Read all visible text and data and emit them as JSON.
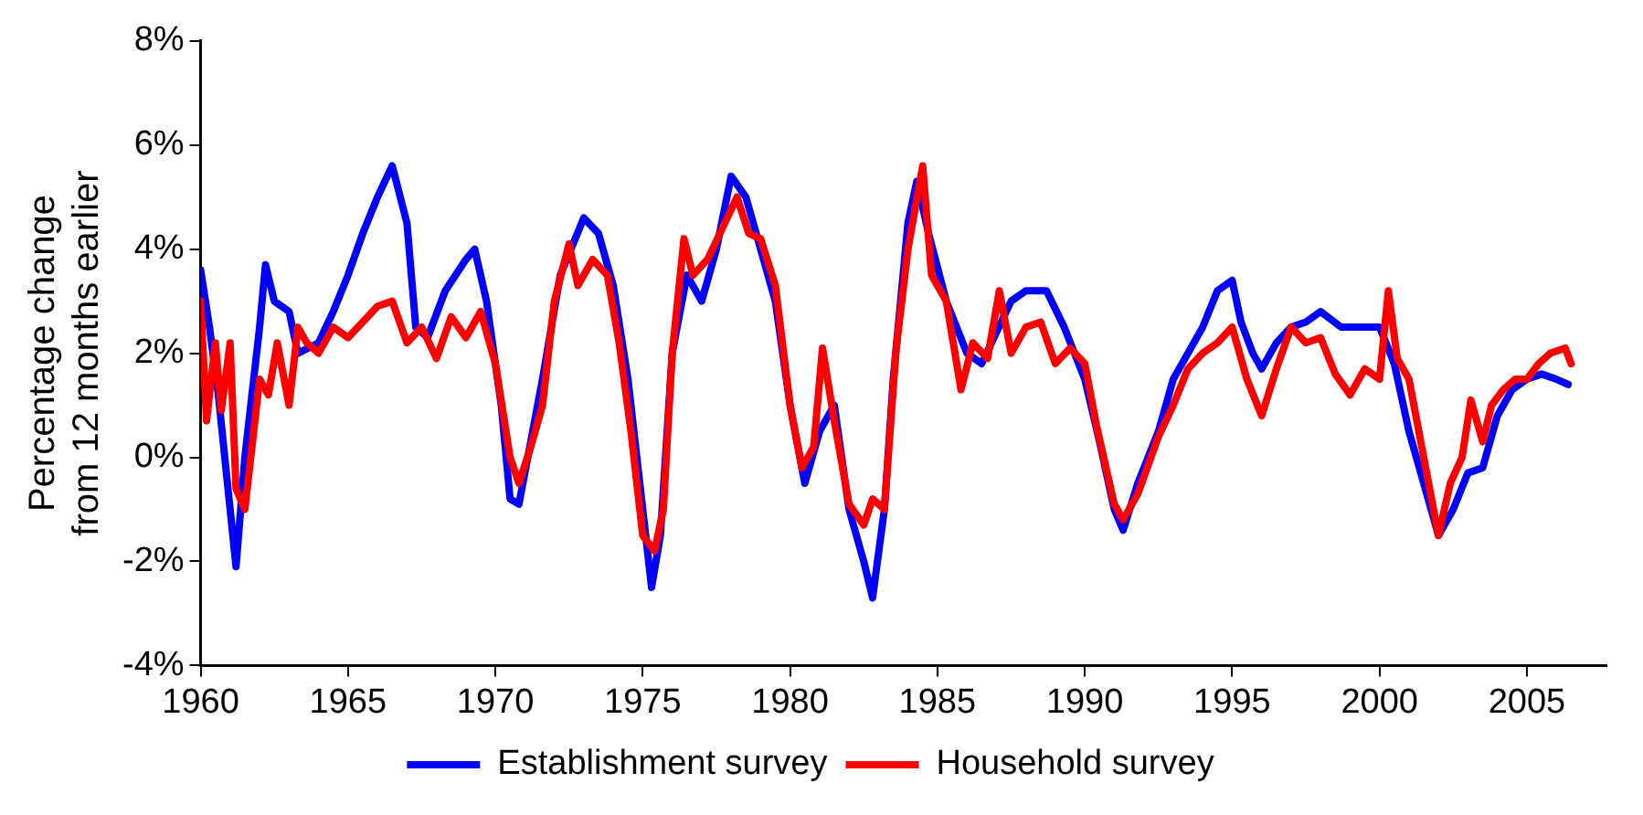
{
  "chart_data": {
    "type": "line",
    "ylabel": "Percentage change\nfrom 12 months earlier",
    "xlim": [
      1960,
      2007.7
    ],
    "xticks": [
      1960,
      1965,
      1970,
      1975,
      1980,
      1985,
      1990,
      1995,
      2000,
      2005
    ],
    "ylim": [
      -4,
      8
    ],
    "yticks": [
      {
        "value": -4,
        "label": "-4%"
      },
      {
        "value": -2,
        "label": "-2%"
      },
      {
        "value": 0,
        "label": "0%"
      },
      {
        "value": 2,
        "label": "2%"
      },
      {
        "value": 4,
        "label": "4%"
      },
      {
        "value": 6,
        "label": "6%"
      },
      {
        "value": 8,
        "label": "8%"
      }
    ],
    "grid": false,
    "legend": "bottom",
    "marker": "none",
    "line_style": "solid",
    "series": [
      {
        "name": "Establishment survey",
        "color": "#0000ff",
        "x": [
          1960,
          1960.3,
          1960.6,
          1961,
          1961.2,
          1961.5,
          1962,
          1962.2,
          1962.5,
          1963,
          1963.3,
          1964,
          1964.5,
          1965,
          1965.5,
          1966,
          1966.5,
          1967,
          1967.3,
          1967.7,
          1968.3,
          1969,
          1969.3,
          1969.7,
          1970.2,
          1970.5,
          1970.8,
          1971.2,
          1971.6,
          1972.2,
          1973,
          1973.5,
          1974,
          1974.5,
          1975,
          1975.3,
          1975.6,
          1976,
          1976.5,
          1977,
          1977.5,
          1978,
          1978.5,
          1979,
          1979.5,
          1980,
          1980.5,
          1981,
          1981.5,
          1982,
          1982.5,
          1982.8,
          1983.2,
          1983.5,
          1984,
          1984.3,
          1984.7,
          1985.3,
          1986,
          1986.5,
          1987,
          1987.5,
          1988,
          1988.7,
          1989.3,
          1990,
          1990.5,
          1991,
          1991.3,
          1991.8,
          1992.5,
          1993,
          1993.5,
          1994,
          1994.5,
          1995,
          1995.3,
          1995.7,
          1996,
          1996.5,
          1997,
          1997.5,
          1998,
          1998.7,
          1999.3,
          2000,
          2000.5,
          2001,
          2001.5,
          2002,
          2002.5,
          2003,
          2003.5,
          2004,
          2004.5,
          2005,
          2005.5,
          2006,
          2006.4
        ],
        "values": [
          3.6,
          2.5,
          1.2,
          -1.0,
          -2.1,
          0,
          2.5,
          3.7,
          3.0,
          2.8,
          2.0,
          2.2,
          2.8,
          3.5,
          4.3,
          5.0,
          5.6,
          4.5,
          2.5,
          2.3,
          3.2,
          3.8,
          4.0,
          3.0,
          1.0,
          -0.8,
          -0.9,
          0.3,
          1.5,
          3.5,
          4.6,
          4.3,
          3.3,
          1.5,
          -1.0,
          -2.5,
          -1.5,
          2.0,
          3.5,
          3.0,
          4.0,
          5.4,
          5.0,
          4.0,
          3.0,
          1.0,
          -0.5,
          0.5,
          1.0,
          -1.0,
          -2.0,
          -2.7,
          -1.0,
          1.5,
          4.5,
          5.3,
          4.3,
          3.0,
          2.0,
          1.8,
          2.4,
          3.0,
          3.2,
          3.2,
          2.5,
          1.5,
          0.3,
          -1.0,
          -1.4,
          -0.5,
          0.5,
          1.5,
          2.0,
          2.5,
          3.2,
          3.4,
          2.6,
          2.0,
          1.7,
          2.2,
          2.5,
          2.6,
          2.8,
          2.5,
          2.5,
          2.5,
          1.8,
          0.5,
          -0.5,
          -1.5,
          -1.0,
          -0.3,
          -0.2,
          0.8,
          1.3,
          1.5,
          1.6,
          1.5,
          1.4
        ]
      },
      {
        "name": "Household survey",
        "color": "#ff0000",
        "x": [
          1960,
          1960.2,
          1960.5,
          1960.7,
          1961,
          1961.2,
          1961.5,
          1961.8,
          1962,
          1962.3,
          1962.6,
          1963,
          1963.3,
          1963.6,
          1964,
          1964.5,
          1965,
          1965.5,
          1966,
          1966.5,
          1967,
          1967.5,
          1968,
          1968.5,
          1969,
          1969.5,
          1970,
          1970.5,
          1970.8,
          1971.2,
          1971.6,
          1972,
          1972.5,
          1972.8,
          1973.3,
          1973.8,
          1974.2,
          1974.6,
          1975,
          1975.4,
          1975.7,
          1976,
          1976.4,
          1976.7,
          1977.2,
          1977.7,
          1978.2,
          1978.6,
          1979,
          1979.5,
          1980,
          1980.4,
          1980.8,
          1981.1,
          1981.5,
          1982,
          1982.5,
          1982.8,
          1983.2,
          1983.6,
          1984,
          1984.5,
          1984.8,
          1985.3,
          1985.8,
          1986.2,
          1986.7,
          1987.1,
          1987.5,
          1988,
          1988.5,
          1989,
          1989.5,
          1990,
          1990.4,
          1991,
          1991.3,
          1991.8,
          1992.5,
          1993,
          1993.5,
          1994,
          1994.5,
          1995,
          1995.5,
          1996,
          1996.5,
          1997,
          1997.5,
          1998,
          1998.5,
          1999,
          1999.5,
          2000,
          2000.3,
          2000.6,
          2001,
          2001.5,
          2002,
          2002.4,
          2002.8,
          2003.1,
          2003.5,
          2003.8,
          2004.2,
          2004.6,
          2005,
          2005.4,
          2005.8,
          2006.3,
          2006.5
        ],
        "values": [
          3.0,
          0.7,
          2.2,
          0.9,
          2.2,
          -0.6,
          -1.0,
          0.5,
          1.5,
          1.2,
          2.2,
          1.0,
          2.5,
          2.2,
          2.0,
          2.5,
          2.3,
          2.6,
          2.9,
          3.0,
          2.2,
          2.5,
          1.9,
          2.7,
          2.3,
          2.8,
          1.8,
          0.0,
          -0.5,
          0.2,
          1.0,
          3.0,
          4.1,
          3.3,
          3.8,
          3.5,
          2.2,
          0.5,
          -1.5,
          -1.8,
          -1.0,
          2.0,
          4.2,
          3.5,
          3.8,
          4.4,
          5.0,
          4.3,
          4.2,
          3.3,
          1.0,
          -0.2,
          0.2,
          2.1,
          0.7,
          -0.9,
          -1.3,
          -0.8,
          -1.0,
          2.1,
          4.0,
          5.6,
          3.5,
          3.0,
          1.3,
          2.2,
          1.9,
          3.2,
          2.0,
          2.5,
          2.6,
          1.8,
          2.1,
          1.8,
          0.6,
          -0.9,
          -1.2,
          -0.7,
          0.4,
          1.0,
          1.7,
          2.0,
          2.2,
          2.5,
          1.5,
          0.8,
          1.7,
          2.5,
          2.2,
          2.3,
          1.6,
          1.2,
          1.7,
          1.5,
          3.2,
          1.9,
          1.5,
          0,
          -1.5,
          -0.5,
          0.0,
          1.1,
          0.3,
          1.0,
          1.3,
          1.5,
          1.5,
          1.8,
          2.0,
          2.1,
          1.8
        ]
      }
    ]
  }
}
